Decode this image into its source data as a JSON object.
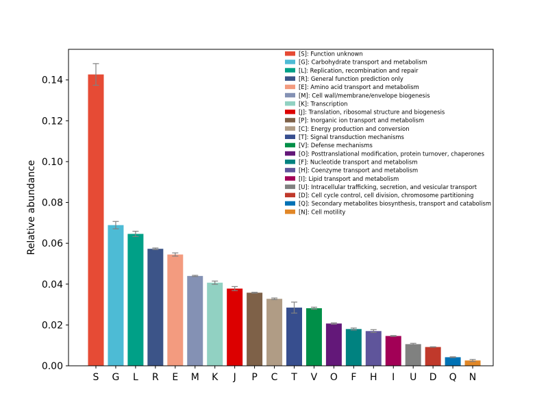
{
  "chart_data": {
    "type": "bar",
    "title": "",
    "xlabel": "",
    "ylabel": "Relative abundance",
    "ylim": [
      0,
      0.155
    ],
    "yticks": [
      "0.00",
      "0.02",
      "0.04",
      "0.06",
      "0.08",
      "0.10",
      "0.12",
      "0.14"
    ],
    "grid": false,
    "legend_position": "top-right",
    "categories": [
      "S",
      "G",
      "L",
      "R",
      "E",
      "M",
      "K",
      "J",
      "P",
      "C",
      "T",
      "V",
      "O",
      "F",
      "H",
      "I",
      "U",
      "D",
      "Q",
      "N"
    ],
    "values": [
      0.1427,
      0.0689,
      0.0646,
      0.0573,
      0.0545,
      0.044,
      0.0407,
      0.0378,
      0.0358,
      0.0328,
      0.0285,
      0.0282,
      0.0207,
      0.018,
      0.017,
      0.0146,
      0.0106,
      0.0092,
      0.0042,
      0.0026
    ],
    "errors": [
      0.0053,
      0.0018,
      0.0013,
      0.0004,
      0.0008,
      0.0003,
      0.0008,
      0.001,
      0.0002,
      0.0004,
      0.0027,
      0.0005,
      0.0003,
      0.0005,
      0.0007,
      0.0002,
      0.0004,
      0.0001,
      0.0002,
      0.0005
    ],
    "colors": [
      "#E64B35",
      "#4DBBD5",
      "#00A087",
      "#3C5488",
      "#F39B7F",
      "#8491B4",
      "#91D1C2",
      "#DC0000",
      "#7E6148",
      "#B09C85",
      "#374E8E",
      "#008F48",
      "#631879",
      "#008280",
      "#5F559B",
      "#A20056",
      "#808180",
      "#C0392B",
      "#0072B5",
      "#E18727"
    ],
    "legend": [
      "[S]: Function unknown",
      "[G]: Carbohydrate transport and metabolism",
      "[L]: Replication, recombination and repair",
      "[R]: General function prediction only",
      "[E]: Amino acid transport and metabolism",
      "[M]: Cell wall/membrane/envelope biogenesis",
      "[K]: Transcription",
      "[J]: Translation, ribosomal structure and biogenesis",
      "[P]: Inorganic ion transport and metabolism",
      "[C]: Energy production and conversion",
      "[T]: Signal transduction mechanisms",
      "[V]: Defense mechanisms",
      "[O]: Posttranslational modification, protein turnover, chaperones",
      "[F]: Nucleotide transport and metabolism",
      "[H]: Coenzyme transport and metabolism",
      "[I]: Lipid transport and metabolism",
      "[U]: Intracellular trafficking, secretion, and vesicular transport",
      "[D]: Cell cycle control, cell division, chromosome partitioning",
      "[Q]: Secondary metabolites biosynthesis, transport and catabolism",
      "[N]: Cell motility"
    ]
  }
}
